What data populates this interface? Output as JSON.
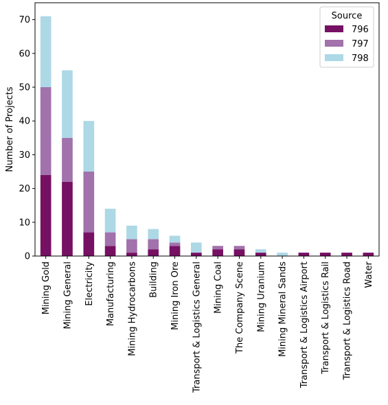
{
  "chart_data": {
    "type": "bar",
    "stacked": true,
    "title": "",
    "xlabel": "",
    "ylabel": "Number of Projects",
    "ylim": [
      0,
      75
    ],
    "yticks": [
      0,
      10,
      20,
      30,
      40,
      50,
      60,
      70
    ],
    "grid": false,
    "legend": {
      "title": "Source",
      "position": "top-right"
    },
    "categories": [
      "Mining Gold",
      "Mining General",
      "Electricity",
      "Manufacturing",
      "Mining Hydrocarbons",
      "Building",
      "Mining Iron Ore",
      "Transport & Logistics General",
      "Mining Coal",
      "The Company Scene",
      "Mining Uranium",
      "Mining Mineral Sands",
      "Transport & Logistics Airport",
      "Transport & Logistics Rail",
      "Transport & Logistics Road",
      "Water"
    ],
    "series": [
      {
        "name": "796",
        "color": "#761063",
        "values": [
          24,
          22,
          7,
          3,
          1,
          2,
          3,
          1,
          2,
          2,
          1,
          0,
          1,
          1,
          1,
          1
        ]
      },
      {
        "name": "797",
        "color": "#a172ab",
        "values": [
          26,
          13,
          18,
          4,
          4,
          3,
          1,
          0,
          1,
          1,
          0,
          0,
          0,
          0,
          0,
          0
        ]
      },
      {
        "name": "798",
        "color": "#add8e6",
        "values": [
          21,
          20,
          15,
          7,
          4,
          3,
          2,
          3,
          0,
          0,
          1,
          1,
          0,
          0,
          0,
          0
        ]
      }
    ]
  }
}
